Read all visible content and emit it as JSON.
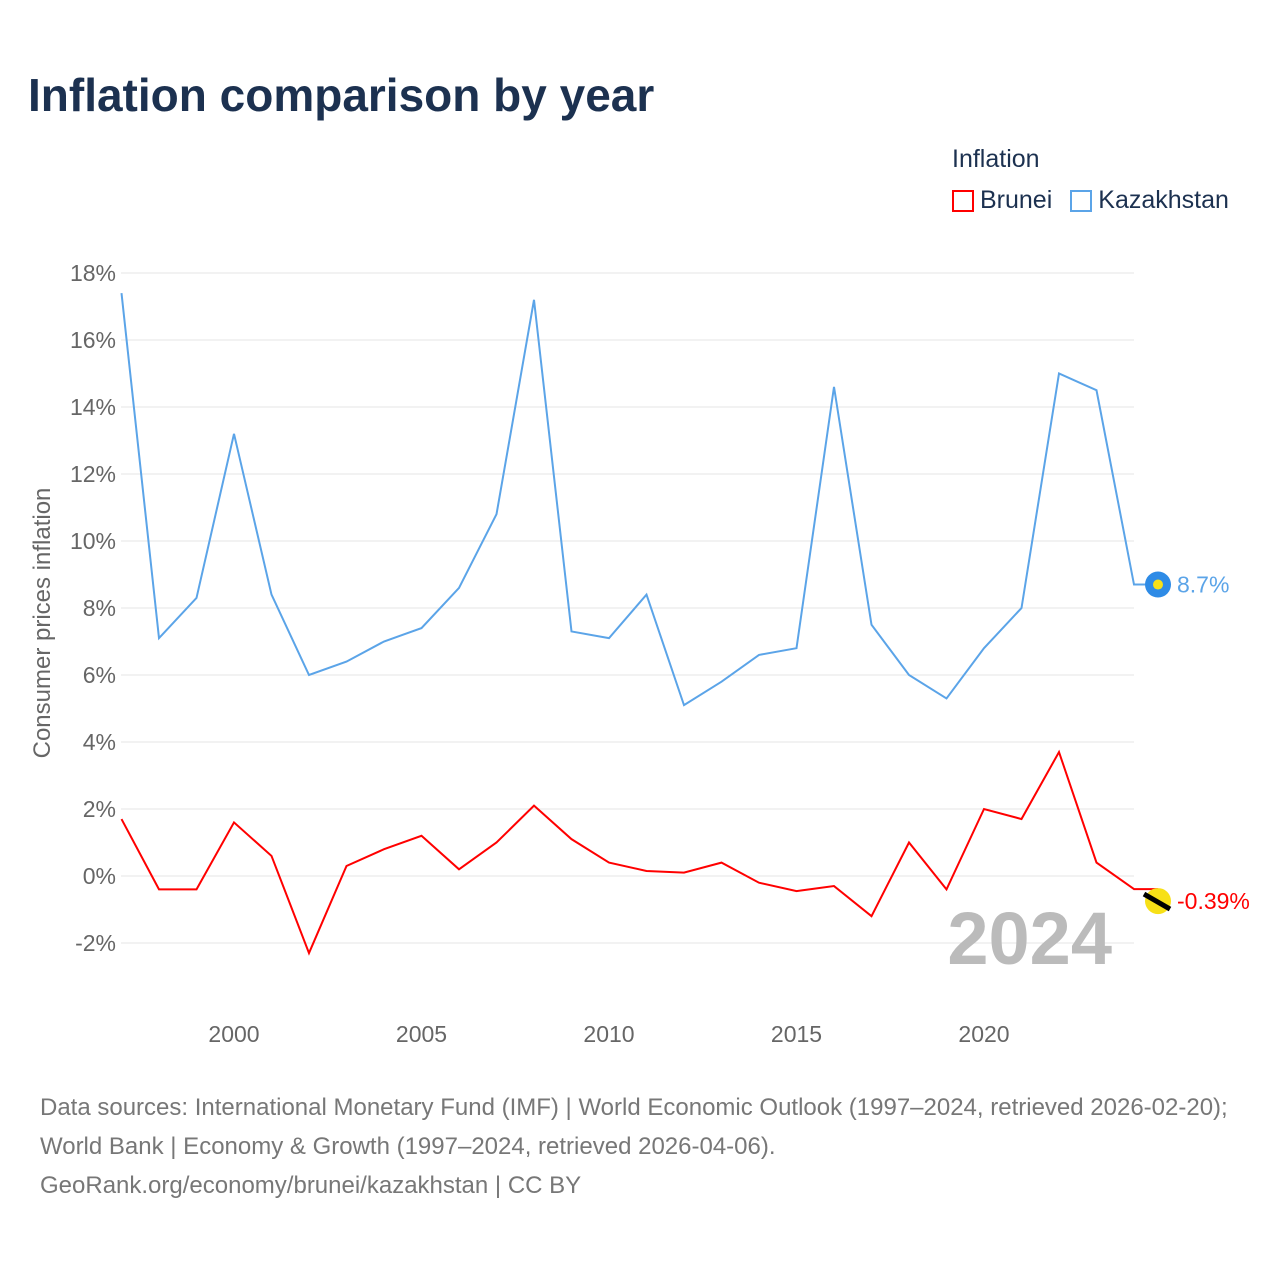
{
  "chart_data": {
    "type": "line",
    "title": "Inflation comparison by year",
    "xlabel": "",
    "ylabel": "Consumer prices inflation",
    "legend_title": "Inflation",
    "legend_placement": "top-right",
    "x": [
      1997,
      1998,
      1999,
      2000,
      2001,
      2002,
      2003,
      2004,
      2005,
      2006,
      2007,
      2008,
      2009,
      2010,
      2011,
      2012,
      2013,
      2014,
      2015,
      2016,
      2017,
      2018,
      2019,
      2020,
      2021,
      2022,
      2023,
      2024
    ],
    "xlim": [
      1997,
      2024
    ],
    "xticks": [
      2000,
      2005,
      2010,
      2015,
      2020
    ],
    "ylim": [
      -3,
      18
    ],
    "yticks": [
      -2,
      0,
      2,
      4,
      6,
      8,
      10,
      12,
      14,
      16,
      18
    ],
    "grid": true,
    "year_watermark": "2024",
    "series": [
      {
        "name": "Brunei",
        "color": "#ff0000",
        "end_label": "-0.39%",
        "values": [
          1.7,
          -0.4,
          -0.4,
          1.6,
          0.6,
          -2.3,
          0.3,
          0.8,
          1.2,
          0.2,
          1.0,
          2.1,
          1.1,
          0.4,
          0.15,
          0.1,
          0.4,
          -0.2,
          -0.45,
          -0.3,
          -1.2,
          1.0,
          -0.4,
          2.0,
          1.7,
          3.7,
          0.4,
          -0.39
        ]
      },
      {
        "name": "Kazakhstan",
        "color": "#5ba4e8",
        "end_label": "8.7%",
        "values": [
          17.4,
          7.1,
          8.3,
          13.2,
          8.4,
          6.0,
          6.4,
          7.0,
          7.4,
          8.6,
          10.8,
          17.2,
          7.3,
          7.1,
          8.4,
          5.1,
          5.8,
          6.6,
          6.8,
          14.6,
          7.5,
          6.0,
          5.3,
          6.8,
          8.0,
          15.0,
          14.5,
          8.7
        ]
      }
    ]
  },
  "footer": {
    "line1": "Data sources: International Monetary Fund (IMF) | World Economic Outlook (1997–2024, retrieved 2026-02-20); World Bank | Economy & Growth (1997–2024, retrieved 2026-04-06).",
    "line2": "GeoRank.org/economy/brunei/kazakhstan | CC BY"
  }
}
